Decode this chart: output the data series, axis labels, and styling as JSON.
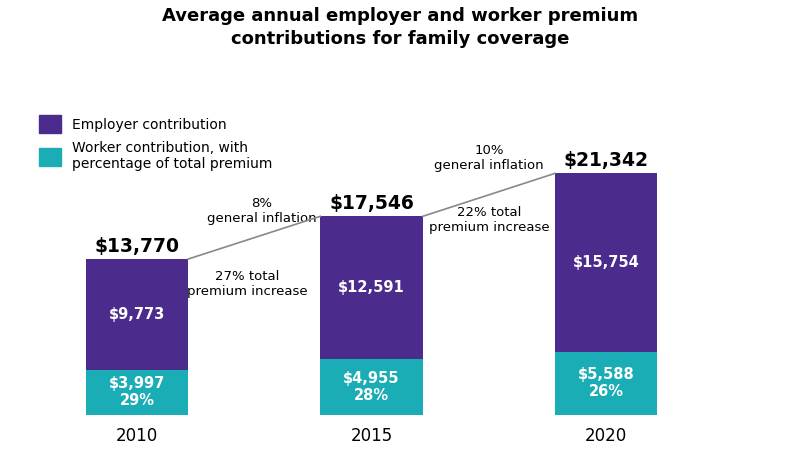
{
  "title": "Average annual employer and worker premium\ncontributions for family coverage",
  "years": [
    "2010",
    "2015",
    "2020"
  ],
  "employer_values": [
    9773,
    12591,
    15754
  ],
  "worker_values": [
    3997,
    4955,
    5588
  ],
  "totals": [
    13770,
    17546,
    21342
  ],
  "worker_pct": [
    "29%",
    "28%",
    "26%"
  ],
  "employer_color": "#4B2B8C",
  "worker_color": "#1BADB5",
  "bar_positions": [
    0.85,
    2.5,
    4.15
  ],
  "bar_width": 0.72,
  "xlim": [
    0.0,
    5.4
  ],
  "ylim": [
    0,
    25500
  ],
  "legend_employer": "Employer contribution",
  "legend_worker": "Worker contribution, with\npercentage of total premium",
  "annot_left_top": "8%\ngeneral inflation",
  "annot_left_bottom": "27% total\npremium increase",
  "annot_right_top": "10%\ngeneral inflation",
  "annot_right_bottom": "22% total\npremium increase",
  "background_color": "#ffffff"
}
